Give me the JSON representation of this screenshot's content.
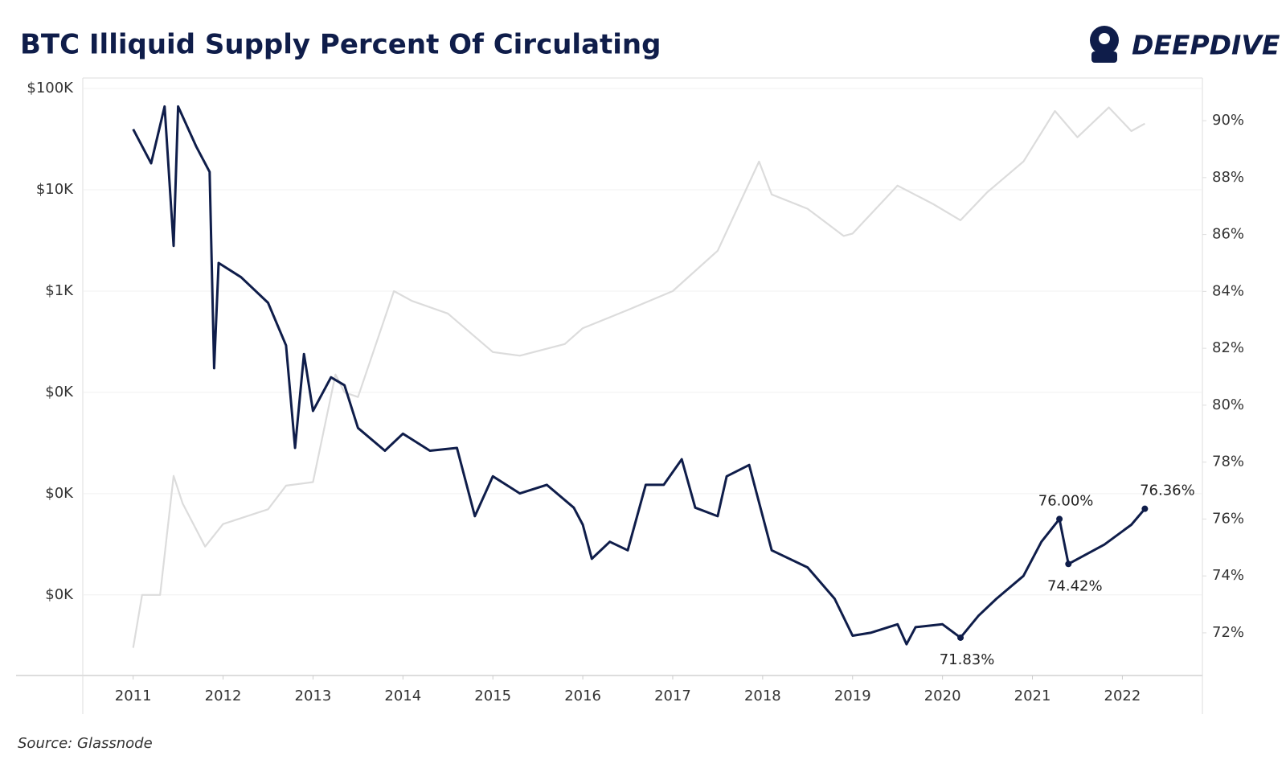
{
  "chart_data": {
    "type": "line",
    "title": "BTC Illiquid Supply Percent Of Circulating",
    "logo": "DEEPDIVE",
    "source": "Source: Glassnode",
    "xlim": [
      2010.44,
      2022.89
    ],
    "xticks": [
      2011,
      2012,
      2013,
      2014,
      2015,
      2016,
      2017,
      2018,
      2019,
      2020,
      2021,
      2022
    ],
    "log_y": true,
    "grid": true,
    "ylim": [
      0.16,
      127000
    ],
    "yticks": [
      {
        "value": 100000,
        "label": "$100K"
      },
      {
        "value": 10000,
        "label": "$10K"
      },
      {
        "value": 1000,
        "label": "$1K"
      },
      {
        "value": 100,
        "label": "$0K"
      },
      {
        "value": 10,
        "label": "$0K"
      },
      {
        "value": 1,
        "label": "$0K"
      }
    ],
    "y2lim": [
      70.5,
      91.5
    ],
    "y2ticks": [
      {
        "value": 90,
        "label": "90%"
      },
      {
        "value": 88,
        "label": "88%"
      },
      {
        "value": 86,
        "label": "86%"
      },
      {
        "value": 84,
        "label": "84%"
      },
      {
        "value": 82,
        "label": "82%"
      },
      {
        "value": 80,
        "label": "80%"
      },
      {
        "value": 78,
        "label": "78%"
      },
      {
        "value": 76,
        "label": "76%"
      },
      {
        "value": 74,
        "label": "74%"
      },
      {
        "value": 72,
        "label": "72%"
      }
    ],
    "series": [
      {
        "color": "#dcdcdc",
        "axis": "y",
        "x": [
          2011.0,
          2011.1,
          2011.3,
          2011.45,
          2011.55,
          2011.8,
          2012.0,
          2012.5,
          2012.7,
          2013.0,
          2013.25,
          2013.35,
          2013.5,
          2013.9,
          2014.1,
          2014.5,
          2015.0,
          2015.3,
          2015.8,
          2016.0,
          2016.5,
          2017.0,
          2017.5,
          2017.96,
          2018.1,
          2018.5,
          2018.9,
          2019.0,
          2019.5,
          2019.9,
          2020.2,
          2020.5,
          2020.9,
          2021.25,
          2021.5,
          2021.85,
          2022.1,
          2022.25
        ],
        "values": [
          0.3,
          1,
          1,
          15,
          8,
          3,
          5,
          7,
          12,
          13,
          150,
          100,
          90,
          1000,
          800,
          600,
          250,
          230,
          300,
          430,
          650,
          1000,
          2500,
          19000,
          9000,
          6500,
          3500,
          3700,
          11000,
          7200,
          5000,
          9500,
          19000,
          60000,
          33000,
          65000,
          38000,
          45000
        ]
      },
      {
        "color": "#0f1d4a",
        "axis": "y2",
        "x": [
          2011.0,
          2011.2,
          2011.35,
          2011.45,
          2011.5,
          2011.7,
          2011.85,
          2011.9,
          2011.95,
          2012.2,
          2012.5,
          2012.7,
          2012.8,
          2012.9,
          2013.0,
          2013.2,
          2013.35,
          2013.5,
          2013.8,
          2014.0,
          2014.3,
          2014.6,
          2014.8,
          2015.0,
          2015.3,
          2015.6,
          2015.9,
          2016.0,
          2016.1,
          2016.3,
          2016.5,
          2016.7,
          2016.9,
          2017.1,
          2017.25,
          2017.5,
          2017.6,
          2017.85,
          2018.0,
          2018.1,
          2018.5,
          2018.8,
          2019.0,
          2019.2,
          2019.5,
          2019.6,
          2019.7,
          2020.0,
          2020.2,
          2020.4,
          2020.6,
          2020.9,
          2021.1,
          2021.3,
          2021.4,
          2021.8,
          2022.1,
          2022.25
        ],
        "values": [
          89.7,
          88.5,
          90.5,
          85.6,
          90.5,
          89.1,
          88.2,
          81.3,
          85.0,
          84.5,
          83.6,
          82.1,
          78.5,
          81.8,
          79.8,
          80.98,
          80.7,
          79.2,
          78.4,
          79.0,
          78.4,
          78.5,
          76.1,
          77.5,
          76.9,
          77.2,
          76.4,
          75.8,
          74.6,
          75.2,
          74.9,
          77.2,
          77.2,
          78.1,
          76.4,
          76.1,
          77.5,
          77.9,
          76.1,
          74.9,
          74.3,
          73.2,
          71.9,
          72.0,
          72.3,
          71.6,
          72.2,
          72.3,
          71.83,
          72.6,
          73.2,
          74.0,
          75.2,
          76.0,
          74.42,
          75.1,
          75.8,
          76.36
        ]
      }
    ],
    "annotations": [
      {
        "x": 2020.2,
        "value": 71.83,
        "label": "71.83%"
      },
      {
        "x": 2021.3,
        "value": 76.0,
        "label": "76.00%"
      },
      {
        "x": 2021.4,
        "value": 74.42,
        "label": "74.42%"
      },
      {
        "x": 2022.25,
        "value": 76.36,
        "label": "76.36%"
      }
    ]
  }
}
